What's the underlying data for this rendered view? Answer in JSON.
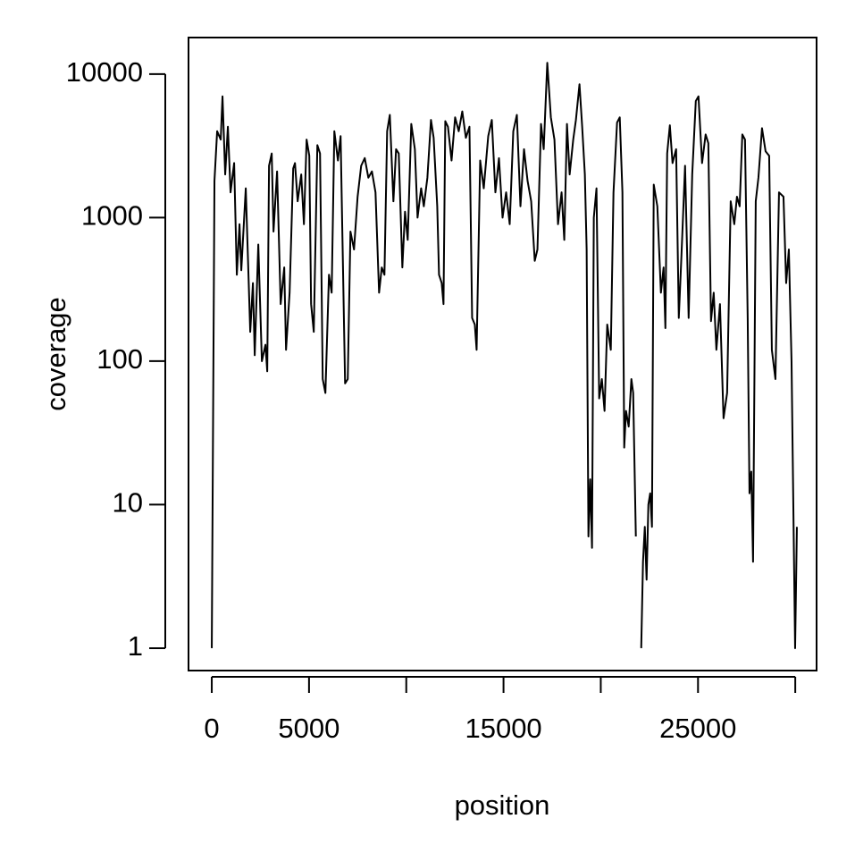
{
  "chart_data": {
    "type": "line",
    "xlabel": "position",
    "ylabel": "coverage",
    "ylog": true,
    "color": "#000000",
    "xlim": [
      -1196,
      31096
    ],
    "ylim": [
      0.698,
      17990
    ],
    "xticks": [
      0,
      5000,
      {
        "value": 10000,
        "label": null
      },
      15000,
      {
        "value": 20000,
        "label": null
      },
      25000,
      {
        "value": 30000,
        "label": null
      }
    ],
    "yticks": [
      1,
      10,
      100,
      1000,
      10000
    ],
    "x": [
      0,
      138,
      276,
      460,
      552,
      690,
      828,
      966,
      1150,
      1288,
      1426,
      1518,
      1748,
      1978,
      2116,
      2208,
      2392,
      2576,
      2760,
      2852,
      2944,
      3082,
      3174,
      3358,
      3542,
      3726,
      3818,
      4002,
      4186,
      4278,
      4416,
      4600,
      4738,
      4876,
      5014,
      5106,
      5244,
      5428,
      5566,
      5704,
      5842,
      6026,
      6164,
      6302,
      6486,
      6624,
      6854,
      6992,
      7130,
      7314,
      7498,
      7682,
      7866,
      8050,
      8234,
      8418,
      8602,
      8740,
      8878,
      9016,
      9154,
      9338,
      9476,
      9614,
      9798,
      9936,
      10074,
      10258,
      10442,
      10580,
      10764,
      10902,
      11086,
      11270,
      11408,
      11592,
      11684,
      11822,
      11914,
      12006,
      12144,
      12328,
      12512,
      12696,
      12880,
      13064,
      13248,
      13386,
      13524,
      13616,
      13800,
      13984,
      14214,
      14398,
      14582,
      14766,
      14950,
      15134,
      15318,
      15502,
      15686,
      15870,
      16054,
      16238,
      16422,
      16606,
      16744,
      16928,
      17066,
      17250,
      17434,
      17618,
      17802,
      17986,
      18124,
      18262,
      18400,
      18584,
      18722,
      18906,
      19044,
      19182,
      19274,
      19366,
      19458,
      19550,
      19642,
      19780,
      19918,
      20056,
      20194,
      20332,
      20516,
      20654,
      20838,
      20976,
      21114,
      21206,
      21298,
      21436,
      21574,
      21666,
      21804,
      21896,
      22080,
      22172,
      22264,
      22356,
      22448,
      22540,
      22632,
      22724,
      22908,
      23092,
      23230,
      23322,
      23414,
      23552,
      23690,
      23874,
      24012,
      24150,
      24334,
      24518,
      24702,
      24886,
      25024,
      25208,
      25392,
      25530,
      25668,
      25806,
      25944,
      26128,
      26312,
      26496,
      26680,
      26864,
      27002,
      27140,
      27278,
      27416,
      27554,
      27646,
      27738,
      27830,
      27968,
      28106,
      28290,
      28474,
      28658,
      28796,
      28980,
      29164,
      29394,
      29532,
      29670,
      29808,
      29900,
      29992,
      30084
    ],
    "values": [
      1,
      1800,
      4000,
      3500,
      7000,
      2000,
      4300,
      1500,
      2400,
      400,
      900,
      430,
      1600,
      160,
      350,
      110,
      650,
      100,
      130,
      85,
      2300,
      2800,
      800,
      2100,
      250,
      450,
      120,
      300,
      2200,
      2400,
      1300,
      2000,
      900,
      3500,
      2700,
      250,
      160,
      3200,
      2800,
      75,
      60,
      400,
      300,
      4000,
      2500,
      3700,
      70,
      75,
      800,
      600,
      1400,
      2300,
      2600,
      1900,
      2100,
      1500,
      300,
      450,
      400,
      4000,
      5200,
      1300,
      3000,
      2800,
      450,
      1100,
      700,
      4500,
      3000,
      1000,
      1600,
      1200,
      1900,
      4800,
      3600,
      1200,
      400,
      350,
      250,
      4700,
      4300,
      2500,
      5000,
      4000,
      5500,
      3600,
      4300,
      200,
      180,
      120,
      2500,
      1600,
      3700,
      4800,
      1500,
      2600,
      1000,
      1500,
      900,
      4000,
      5200,
      1200,
      3000,
      1800,
      1300,
      500,
      600,
      4500,
      3000,
      12000,
      5000,
      3500,
      900,
      1500,
      700,
      4500,
      2000,
      3500,
      4800,
      8500,
      4300,
      2000,
      600,
      6,
      15,
      5,
      1000,
      1600,
      55,
      75,
      45,
      180,
      120,
      1500,
      4600,
      5000,
      1500,
      25,
      45,
      35,
      75,
      60,
      6,
      null,
      1,
      4,
      7,
      3,
      10,
      12,
      7,
      1700,
      1200,
      300,
      450,
      170,
      2800,
      4400,
      2400,
      3000,
      200,
      550,
      2300,
      200,
      2000,
      6500,
      7000,
      2400,
      3800,
      3300,
      190,
      300,
      120,
      250,
      40,
      60,
      1300,
      900,
      1400,
      1200,
      3800,
      3500,
      200,
      12,
      17,
      4,
      1300,
      1900,
      4200,
      2900,
      2700,
      120,
      75,
      1500,
      1400,
      350,
      600,
      100,
      10,
      1,
      7
    ]
  }
}
